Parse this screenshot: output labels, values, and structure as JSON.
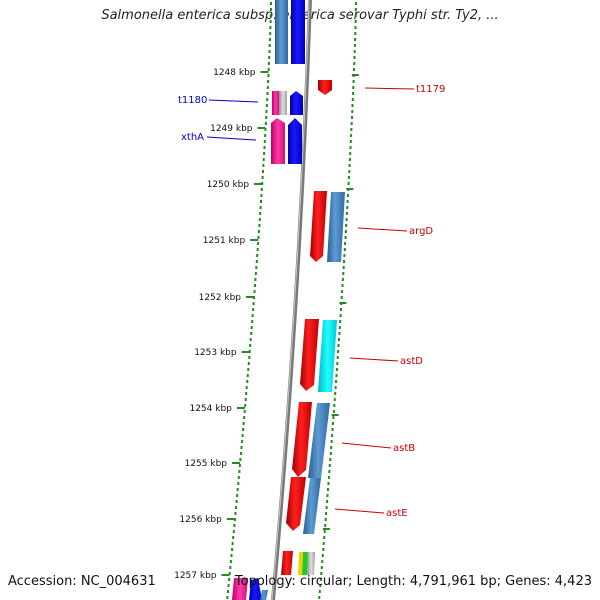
{
  "title": "Salmonella enterica subsp. enterica serovar Typhi str. Ty2, ...",
  "footer": {
    "accession": "Accession: NC_004631",
    "topology": "Topology: circular; Length: 4,791,961 bp; Genes: 4,423"
  },
  "scale_labels": [
    "1248 kbp",
    "1249 kbp",
    "1250 kbp",
    "1251 kbp",
    "1252 kbp",
    "1253 kbp",
    "1254 kbp",
    "1255 kbp",
    "1256 kbp",
    "1257 kbp"
  ],
  "gene_labels": {
    "t1180": "t1180",
    "xthA": "xthA",
    "t1179": "t1179",
    "argD": "argD",
    "astD": "astD",
    "astB": "astB",
    "astE": "astE"
  },
  "colors": {
    "forward_red": "#ff0000",
    "reverse_blue": "#0000ff",
    "steel": "#4a86c0",
    "cyan": "#00f0f0",
    "pink": "#ff1e9a",
    "dot_green": "#228b22",
    "backbone": "#808080"
  }
}
